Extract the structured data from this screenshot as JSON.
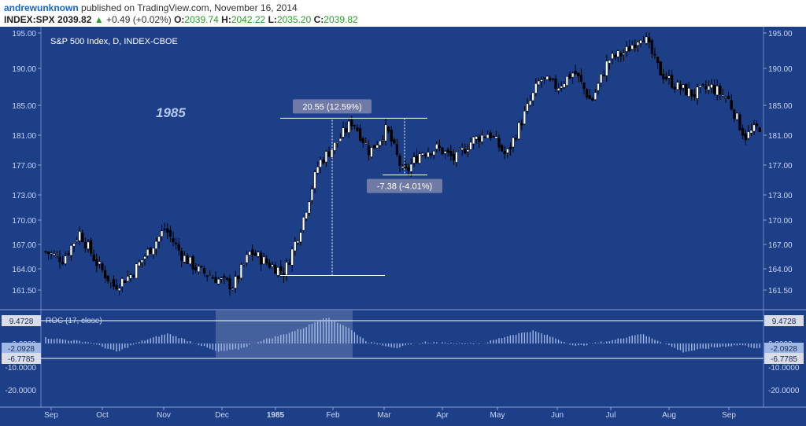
{
  "header": {
    "author": "andrewunknown",
    "published": "published on TradingView.com, November 16, 2014",
    "symbol": "INDEX:SPX",
    "last": "2039.82",
    "arrow": "▲",
    "change": "+0.49 (+0.02%)",
    "o_label": "O:",
    "o": "2039.74",
    "h_label": "H:",
    "h": "2042.22",
    "l_label": "L:",
    "l": "2035.20",
    "c_label": "C:",
    "c": "2039.82"
  },
  "chart_data": {
    "type": "candlestick",
    "title": "S&P 500 Index, D, INDEX-CBOE",
    "year_annotation": "1985",
    "price_ticks": [
      "195.00",
      "190.00",
      "185.00",
      "181.00",
      "177.00",
      "173.00",
      "170.00",
      "167.00",
      "164.00",
      "161.50"
    ],
    "x_ticks": [
      "Sep",
      "Oct",
      "Nov",
      "Dec",
      "1985",
      "Feb",
      "Mar",
      "Apr",
      "May",
      "Jun",
      "Jul",
      "Aug",
      "Sep"
    ],
    "measure_up": "20.55 (12.59%)",
    "measure_down": "-7.38 (-4.01%)",
    "measure_up_range": [
      163.4,
      183.9
    ],
    "measure_down_range": [
      183.9,
      176.5
    ],
    "price_path": [
      [
        "Sep",
        166.5
      ],
      [
        "Sep",
        165.5
      ],
      [
        "Sep",
        169.0
      ],
      [
        "Sep",
        165.0
      ],
      [
        "Oct",
        162.0
      ],
      [
        "Oct",
        163.5
      ],
      [
        "Oct",
        166.5
      ],
      [
        "Nov",
        169.5
      ],
      [
        "Nov",
        166.0
      ],
      [
        "Nov",
        164.0
      ],
      [
        "Dec",
        163.0
      ],
      [
        "Dec",
        162.0
      ],
      [
        "Dec",
        166.5
      ],
      [
        "Dec",
        165.0
      ],
      [
        "1985",
        163.8
      ],
      [
        "1985",
        170.0
      ],
      [
        "1985",
        178.0
      ],
      [
        "Feb",
        180.5
      ],
      [
        "Feb",
        183.6
      ],
      [
        "Feb",
        179.5
      ],
      [
        "Mar",
        182.5
      ],
      [
        "Mar",
        176.5
      ],
      [
        "Mar",
        179.5
      ],
      [
        "Apr",
        180.0
      ],
      [
        "Apr",
        178.5
      ],
      [
        "Apr",
        181.0
      ],
      [
        "May",
        182.0
      ],
      [
        "May",
        179.0
      ],
      [
        "May",
        184.0
      ],
      [
        "May",
        189.0
      ],
      [
        "Jun",
        188.0
      ],
      [
        "Jun",
        190.0
      ],
      [
        "Jun",
        186.0
      ],
      [
        "Jul",
        191.5
      ],
      [
        "Jul",
        192.5
      ],
      [
        "Jul",
        195.0
      ],
      [
        "Aug",
        190.0
      ],
      [
        "Aug",
        188.0
      ],
      [
        "Aug",
        187.0
      ],
      [
        "Sep",
        188.0
      ],
      [
        "Sep",
        186.5
      ],
      [
        "Sep",
        181.5
      ],
      [
        "Sep",
        183.0
      ]
    ],
    "indicator": {
      "label": "ROC (17, close)",
      "value_labels": [
        "9.4728",
        "-2.0928",
        "-6.7785"
      ],
      "ticks": [
        "0.0000",
        "-10.0000",
        "-20.0000"
      ],
      "profile": [
        [
          0.0,
          2.0
        ],
        [
          0.06,
          0.5
        ],
        [
          0.1,
          -3.0
        ],
        [
          0.13,
          0.5
        ],
        [
          0.17,
          3.5
        ],
        [
          0.21,
          0.0
        ],
        [
          0.24,
          -3.0
        ],
        [
          0.27,
          -2.0
        ],
        [
          0.3,
          1.0
        ],
        [
          0.33,
          3.0
        ],
        [
          0.36,
          5.5
        ],
        [
          0.39,
          9.4
        ],
        [
          0.42,
          6.0
        ],
        [
          0.45,
          0.5
        ],
        [
          0.49,
          -1.5
        ],
        [
          0.53,
          0.5
        ],
        [
          0.57,
          0.0
        ],
        [
          0.61,
          0.0
        ],
        [
          0.65,
          3.0
        ],
        [
          0.68,
          4.5
        ],
        [
          0.71,
          2.0
        ],
        [
          0.74,
          -1.0
        ],
        [
          0.79,
          1.0
        ],
        [
          0.83,
          3.5
        ],
        [
          0.86,
          0.5
        ],
        [
          0.89,
          -3.0
        ],
        [
          0.93,
          -1.5
        ],
        [
          0.97,
          -0.5
        ],
        [
          1.0,
          -2.0
        ]
      ]
    },
    "colors": {
      "background": "#1d3f88",
      "up_candle": "#ffffff",
      "down_candle": "#000000",
      "indicator": "#9fb8e6",
      "highlight": "#ffffff"
    }
  }
}
